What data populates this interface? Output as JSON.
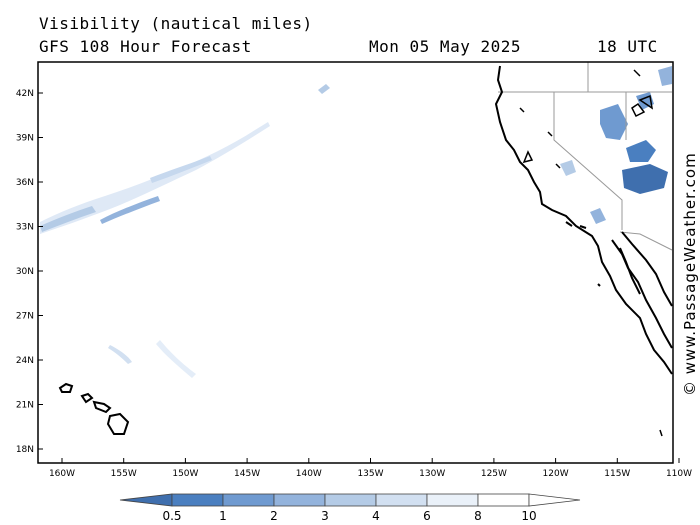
{
  "header": {
    "title": "Visibility (nautical miles)",
    "model": "GFS 108 Hour Forecast",
    "date": "Mon 05 May 2025",
    "time": "18 UTC"
  },
  "credit": "© www.PassageWeather.com",
  "map": {
    "lat_labels": [
      "42N",
      "39N",
      "36N",
      "33N",
      "30N",
      "27N",
      "24N",
      "21N",
      "18N"
    ],
    "lon_labels": [
      "160W",
      "155W",
      "150W",
      "145W",
      "140W",
      "135W",
      "130W",
      "125W",
      "120W",
      "115W",
      "110W"
    ]
  },
  "legend": {
    "labels": [
      "0.5",
      "1",
      "2",
      "3",
      "4",
      "6",
      "8",
      "10"
    ],
    "colors": [
      "#3f6fae",
      "#4a7fc0",
      "#6f9ad0",
      "#93b3dc",
      "#b4cbe6",
      "#d2e0f1",
      "#eaf1f9",
      "#ffffff"
    ]
  }
}
